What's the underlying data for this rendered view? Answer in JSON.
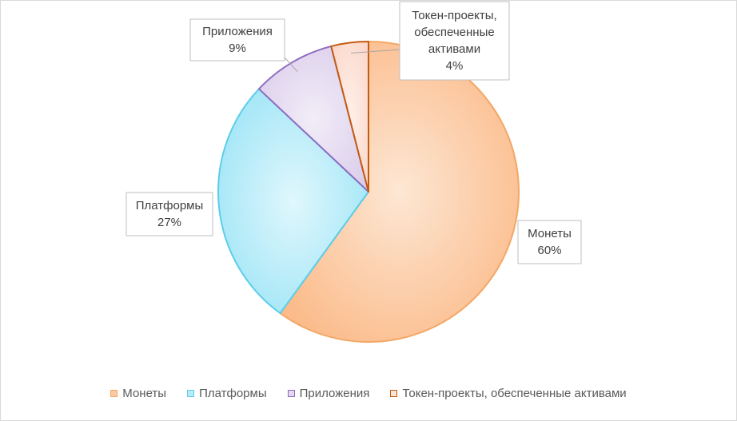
{
  "chart_data": {
    "type": "pie",
    "categories": [
      "Монеты",
      "Платформы",
      "Приложения",
      "Токен-проекты, обеспеченные активами"
    ],
    "values": [
      60,
      27,
      9,
      4
    ],
    "data_labels": [
      {
        "lines": [
          "Монеты"
        ],
        "value": "60%"
      },
      {
        "lines": [
          "Платформы"
        ],
        "value": "27%"
      },
      {
        "lines": [
          "Приложения"
        ],
        "value": "9%"
      },
      {
        "lines": [
          "Токен-проекты,",
          "обеспеченные",
          "активами"
        ],
        "value": "4%"
      }
    ],
    "legend_position": "bottom",
    "start_angle": "top, clockwise"
  },
  "colors": {
    "fills": [
      "#fcc9a0",
      "#b6ecf8",
      "#e3d8f0",
      "#fde3d8"
    ],
    "strokes": [
      "#f4a766",
      "#5bcdea",
      "#8e6cc0",
      "#c55a11"
    ]
  }
}
